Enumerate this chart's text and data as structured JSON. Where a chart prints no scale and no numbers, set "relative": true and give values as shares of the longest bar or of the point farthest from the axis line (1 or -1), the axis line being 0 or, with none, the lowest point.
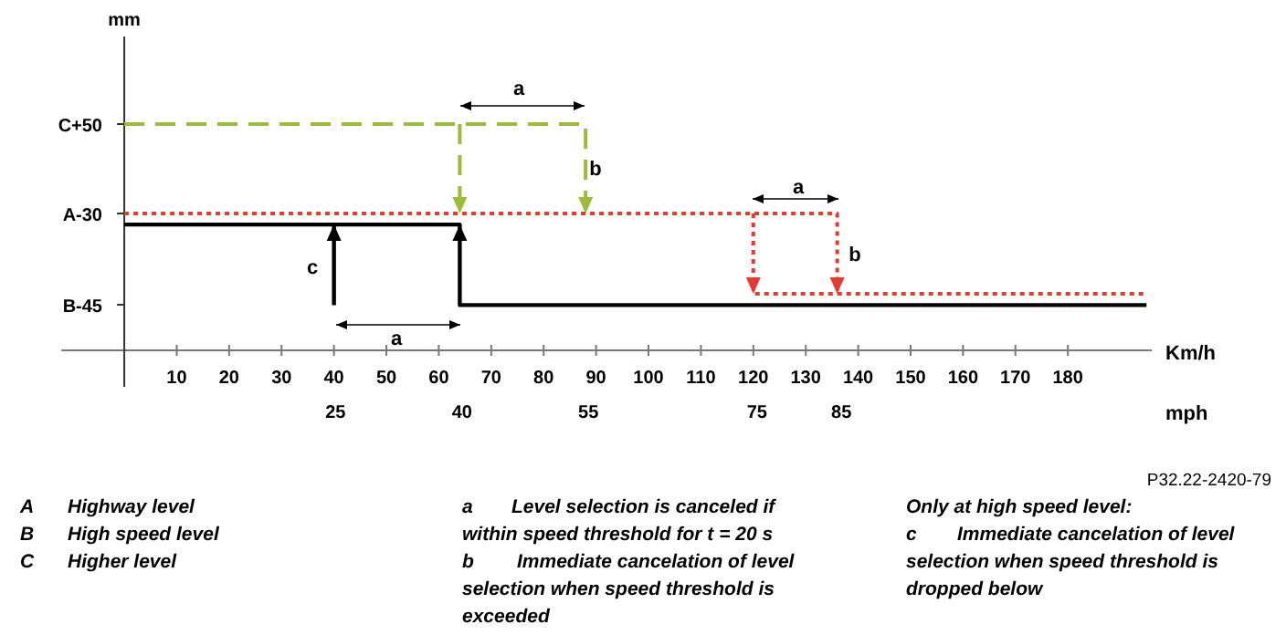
{
  "chart_data": {
    "type": "line",
    "relative": true,
    "xlabel": "Km/h",
    "x2label": "mph",
    "xlim": [
      -12,
      196
    ],
    "xticks": [
      10,
      20,
      30,
      40,
      50,
      60,
      70,
      80,
      90,
      100,
      110,
      120,
      130,
      140,
      150,
      160,
      170,
      180
    ],
    "x2lim": [
      -7.5,
      121.8
    ],
    "x2ticks": [
      25,
      40,
      55,
      75,
      85
    ],
    "series": [
      {
        "color": "#9bbb3a",
        "line_style": "dashed",
        "x": [
          0,
          88,
          88,
          76,
          64,
          64
        ],
        "values": [
          1,
          1,
          0.605,
          null,
          1,
          0.605
        ]
      },
      {
        "color": "#e03c31",
        "line_style": "dotted",
        "x": [
          0,
          136,
          136,
          128,
          120,
          120,
          195
        ],
        "values": [
          0.605,
          0.605,
          0.25,
          null,
          0.605,
          0.25,
          0.25
        ]
      },
      {
        "color": "#000000",
        "line_style": "solid",
        "x": [
          40,
          40,
          50,
          195,
          64,
          64,
          0
        ],
        "values": [
          0.2,
          0.556,
          null,
          0.2,
          0.2,
          0.556,
          0.556
        ]
      }
    ],
    "annotations": [
      "mm",
      "C+50",
      "A-30",
      "B-45",
      "a",
      "b",
      "a",
      "b",
      "c",
      "a",
      "P32.22-2420-79",
      "A",
      "Highway level",
      "B",
      "High speed level",
      "C",
      "Higher level",
      "a",
      "Level selection is canceled if",
      "within speed threshold for t = 20 s",
      "b",
      "Immediate cancelation of level",
      "selection when speed threshold is",
      "exceeded",
      "Only at high speed level:",
      "c",
      "Immediate cancelation of level",
      "selection when speed threshold is",
      "dropped below"
    ]
  }
}
